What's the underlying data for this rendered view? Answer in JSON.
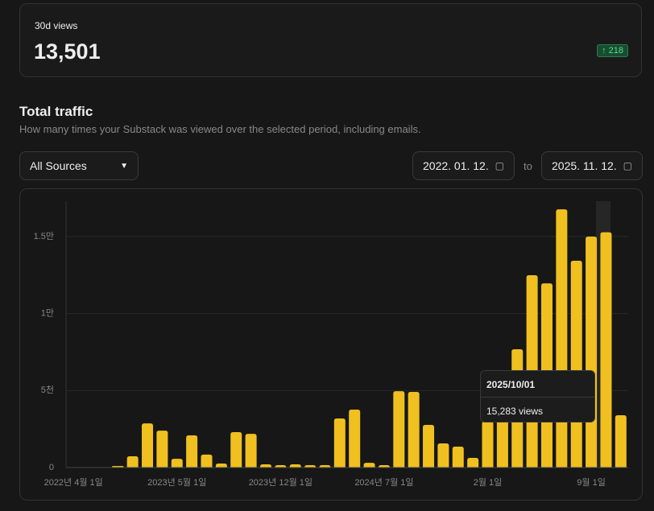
{
  "card": {
    "label": "30d views",
    "value": "13,501",
    "badge": "218"
  },
  "section": {
    "title": "Total traffic",
    "subtitle": "How many times your Substack was viewed over the selected period, including emails."
  },
  "filter": {
    "source": "All Sources",
    "date_from": "2022. 01. 12.",
    "to": "to",
    "date_to": "2025. 11. 12."
  },
  "chart_data": {
    "type": "bar",
    "color": "#f0c020",
    "categories": [
      "2022년 4월 1일",
      null,
      null,
      null,
      null,
      null,
      null,
      "2023년 5월 1일",
      null,
      null,
      null,
      null,
      null,
      null,
      "2023년 12월 1일",
      null,
      null,
      null,
      null,
      null,
      null,
      "2024년 7월 1일",
      null,
      null,
      null,
      null,
      null,
      null,
      "2월 1일",
      null,
      null,
      null,
      null,
      null,
      null,
      "9월 1일",
      null,
      null
    ],
    "values": [
      0,
      0,
      0,
      100,
      730,
      2870,
      2400,
      570,
      2090,
      840,
      260,
      2300,
      2190,
      210,
      160,
      210,
      160,
      160,
      3190,
      3760,
      310,
      160,
      4960,
      4910,
      2770,
      1570,
      1360,
      630,
      3000,
      3500,
      7680,
      12490,
      11960,
      16770,
      13430,
      15000,
      15283,
      3400
    ],
    "ylim": [
      0,
      17300
    ],
    "yticks": [
      0,
      {
        "value": 5000,
        "label": "5천"
      },
      {
        "value": 10000,
        "label": "1만"
      },
      {
        "value": 15000,
        "label": "1.5만"
      }
    ],
    "grid": true
  },
  "tooltip": {
    "date": "2025/10/01",
    "text": "15,283 views"
  }
}
